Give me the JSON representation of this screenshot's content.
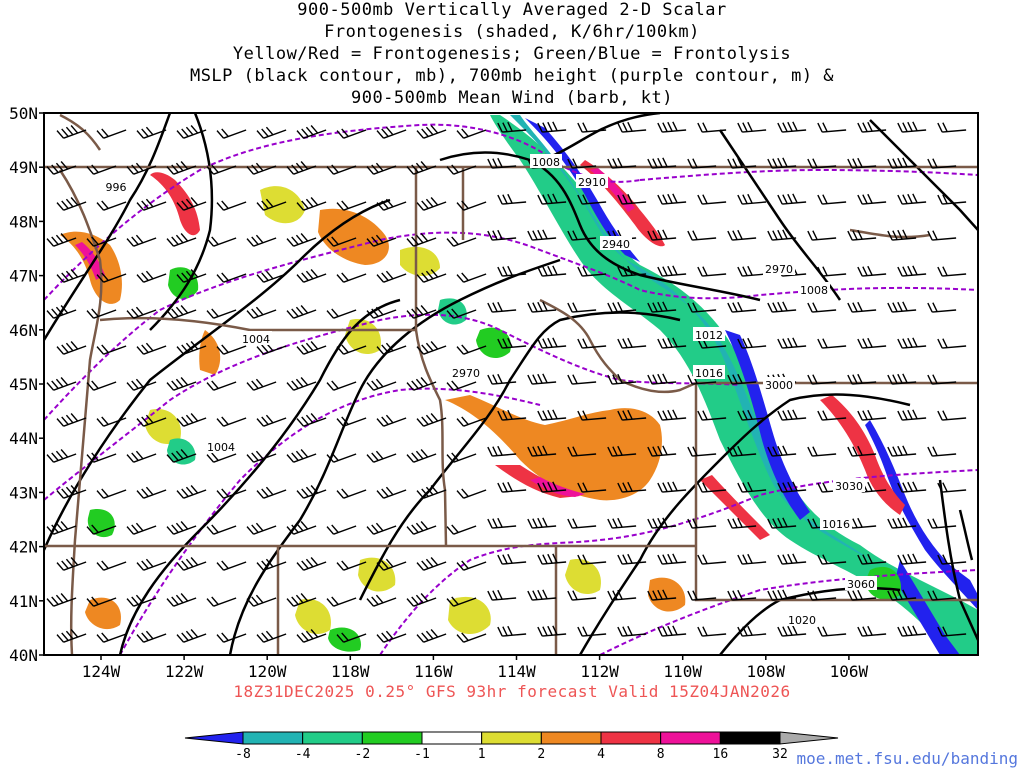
{
  "title": {
    "lines": [
      "900-500mb Vertically Averaged 2-D Scalar",
      "Frontogenesis (shaded, K/6hr/100km)",
      "Yellow/Red = Frontogenesis;  Green/Blue = Frontolysis",
      "MSLP (black contour, mb), 700mb height (purple contour, m) &",
      "900-500mb Mean Wind (barb, kt)"
    ]
  },
  "forecast_label": "18Z31DEC2025 0.25° GFS 93hr forecast Valid 15Z04JAN2026",
  "source_url": "moe.met.fsu.edu/banding",
  "axes": {
    "lat_labels": [
      "50N",
      "49N",
      "48N",
      "47N",
      "46N",
      "45N",
      "44N",
      "43N",
      "42N",
      "41N",
      "40N"
    ],
    "lon_labels": [
      "124W",
      "122W",
      "120W",
      "118W",
      "116W",
      "114W",
      "112W",
      "110W",
      "108W",
      "106W"
    ]
  },
  "colorbar": {
    "labels": [
      "-8",
      "-4",
      "-2",
      "-1",
      "1",
      "2",
      "4",
      "8",
      "16",
      "32"
    ],
    "colors": [
      "#2222ee",
      "#22b3b3",
      "#22cc88",
      "#22cc22",
      "#ffffff",
      "#dddd33",
      "#ee8822",
      "#ee3344",
      "#ee1199",
      "#000000",
      "#aaaaaa"
    ]
  },
  "contour_labels": {
    "mslp": [
      "996",
      "1008",
      "1004",
      "1004",
      "1008",
      "1012",
      "1016",
      "1016",
      "1020"
    ],
    "height_700mb": [
      "2910",
      "2940",
      "2970",
      "2970",
      "3000",
      "3030",
      "3060"
    ]
  },
  "colors": {
    "state_border": "#7a5a48",
    "mslp_contour": "#000000",
    "height_contour": "#9900cc"
  }
}
